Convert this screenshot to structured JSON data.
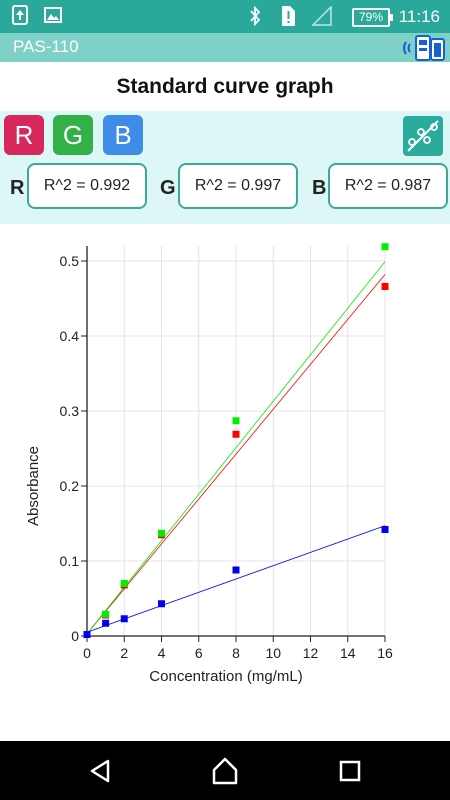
{
  "status_bar": {
    "time": "11:16",
    "battery": "79%",
    "icons": [
      "upload-icon",
      "image-icon",
      "bluetooth-icon",
      "sim-alert-icon",
      "signal-icon",
      "battery-icon"
    ]
  },
  "app_bar": {
    "title": "PAS-110",
    "device_icon": "device-connected-icon"
  },
  "page": {
    "title": "Standard curve graph"
  },
  "channels": {
    "buttons": [
      {
        "label": "R",
        "color": "#d8275c"
      },
      {
        "label": "G",
        "color": "#33b048"
      },
      {
        "label": "B",
        "color": "#3f8be8"
      }
    ],
    "fit_icon": "linear-fit-icon",
    "r_squared": [
      {
        "letter": "R",
        "value": "R^2 = 0.992"
      },
      {
        "letter": "G",
        "value": "R^2 = 0.997"
      },
      {
        "letter": "B",
        "value": "R^2 = 0.987"
      }
    ]
  },
  "chart_data": {
    "type": "scatter",
    "xlabel": "Concentration (mg/mL)",
    "ylabel": "Absorbance",
    "xlim": [
      0,
      16
    ],
    "ylim": [
      0,
      0.52
    ],
    "x_ticks": [
      "0",
      "2",
      "4",
      "6",
      "8",
      "10",
      "12",
      "14",
      "16"
    ],
    "y_ticks": [
      "0",
      "0.1",
      "0.2",
      "0.3",
      "0.4",
      "0.5"
    ],
    "grid": true,
    "series": [
      {
        "color": "#ff0000",
        "x": [
          0,
          1,
          2,
          4,
          8,
          16
        ],
        "y": [
          0.002,
          0.028,
          0.068,
          0.135,
          0.269,
          0.466
        ],
        "fit": [
          0.003,
          0.482
        ]
      },
      {
        "color": "#00ee00",
        "x": [
          0,
          1,
          2,
          4,
          8,
          16
        ],
        "y": [
          0.002,
          0.029,
          0.07,
          0.137,
          0.287,
          0.519
        ],
        "fit": [
          0.003,
          0.499
        ]
      },
      {
        "color": "#0000ee",
        "x": [
          0,
          1,
          2,
          4,
          8,
          16
        ],
        "y": [
          0.002,
          0.017,
          0.023,
          0.043,
          0.088,
          0.142
        ],
        "fit": [
          0.005,
          0.147
        ]
      }
    ]
  },
  "nav_bar": {
    "icons": [
      "back-icon",
      "home-icon",
      "recents-icon"
    ]
  }
}
